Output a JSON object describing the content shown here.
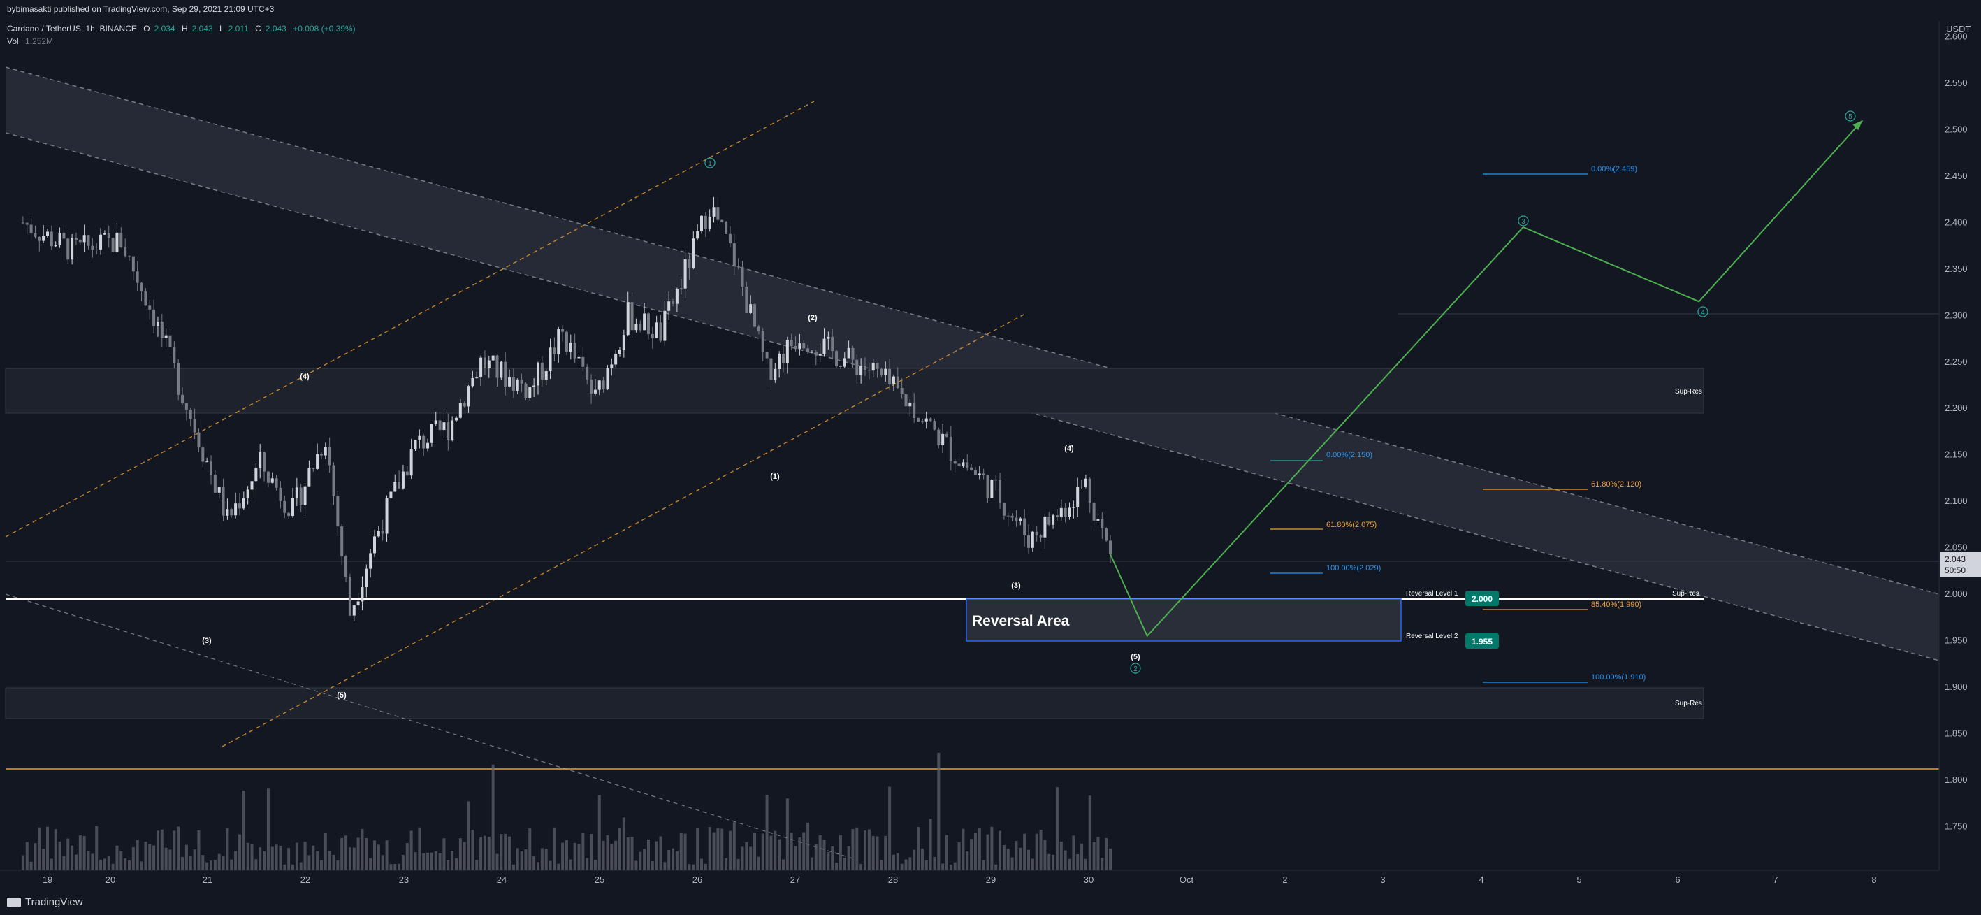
{
  "header": {
    "publisher": "bybimasakti published on TradingView.com, Sep 29, 2021 21:09 UTC+3",
    "symbol": "Cardano / TetherUS, 1h, BINANCE",
    "o_label": "O",
    "o_value": "2.034",
    "h_label": "H",
    "h_value": "2.043",
    "l_label": "L",
    "l_value": "2.011",
    "c_label": "C",
    "c_value": "2.043",
    "change": "+0.008 (+0.39%)",
    "vol_label": "Vol",
    "vol_value": "1.252M"
  },
  "price_axis": {
    "currency": "USDT",
    "ticks": [
      "2.600",
      "2.550",
      "2.500",
      "2.450",
      "2.400",
      "2.350",
      "2.300",
      "2.250",
      "2.200",
      "2.150",
      "2.100",
      "2.050",
      "2.000",
      "1.950",
      "1.900",
      "1.850",
      "1.800",
      "1.750"
    ],
    "current_price": "2.043",
    "countdown": "50:50"
  },
  "time_axis": {
    "ticks": [
      "19",
      "20",
      "21",
      "22",
      "23",
      "24",
      "25",
      "26",
      "27",
      "28",
      "29",
      "30",
      "Oct",
      "2",
      "3",
      "4",
      "5",
      "6",
      "7",
      "8"
    ]
  },
  "footer": {
    "brand": "TradingView"
  },
  "annotations": {
    "wave_labels": [
      {
        "text": "(4)"
      },
      {
        "text": "(3)"
      },
      {
        "text": "(5)"
      },
      {
        "text": "(2)"
      },
      {
        "text": "(1)"
      },
      {
        "text": "(3)"
      },
      {
        "text": "(4)"
      },
      {
        "text": "(5)"
      }
    ],
    "circled_labels": [
      {
        "text": "1"
      },
      {
        "text": "2"
      },
      {
        "text": "3"
      },
      {
        "text": "4"
      },
      {
        "text": "5"
      }
    ],
    "sup_res": [
      "Sup-Res",
      "Sup-Res",
      "Sup-Res"
    ],
    "reversal_area": "Reversal Area",
    "reversal_level_1": "Reversal Level 1",
    "reversal_level_1_value": "2.000",
    "reversal_level_2": "Reversal Level 2",
    "reversal_level_2_value": "1.955",
    "fib_left": [
      "0.00%(2.150)",
      "61.80%(2.075)",
      "100.00%(2.029)"
    ],
    "fib_right": [
      "0.00%(2.459)",
      "61.80%(2.120)",
      "85.40%(1.990)",
      "100.00%(1.910)"
    ]
  },
  "chart_data": {
    "type": "candlestick",
    "title": "Cardano / TetherUS, 1h, BINANCE",
    "xlabel": "",
    "ylabel": "USDT",
    "ylim": [
      1.72,
      2.62
    ],
    "grid": false,
    "colors": {
      "background": "#131722",
      "candle": "#b2b5be",
      "volume": "#5d606b",
      "projection": "#4caf50",
      "channel_fill": "#2a2e39",
      "sup_res_fill": "#1e222d",
      "orange_line": "#f0a12a",
      "fib_blue": "#2196f3",
      "reversal_box": "#2962ff",
      "teal": "#26a69a",
      "label_bg": "#00796b"
    },
    "close_path": [
      {
        "x": "Sep 18 18:00",
        "y": 2.4
      },
      {
        "x": "Sep 19 06:00",
        "y": 2.37
      },
      {
        "x": "Sep 19 18:00",
        "y": 2.38
      },
      {
        "x": "Sep 20 02:00",
        "y": 2.3
      },
      {
        "x": "Sep 20 12:00",
        "y": 2.18
      },
      {
        "x": "Sep 20 20:00",
        "y": 2.08
      },
      {
        "x": "Sep 21 04:00",
        "y": 2.14
      },
      {
        "x": "Sep 21 12:00",
        "y": 2.09
      },
      {
        "x": "Sep 21 20:00",
        "y": 2.17
      },
      {
        "x": "Sep 22 02:00",
        "y": 1.98
      },
      {
        "x": "Sep 22 08:00",
        "y": 2.06
      },
      {
        "x": "Sep 22 18:00",
        "y": 2.16
      },
      {
        "x": "Sep 23 02:00",
        "y": 2.18
      },
      {
        "x": "Sep 23 10:00",
        "y": 2.25
      },
      {
        "x": "Sep 23 22:00",
        "y": 2.22
      },
      {
        "x": "Sep 24 06:00",
        "y": 2.28
      },
      {
        "x": "Sep 24 14:00",
        "y": 2.21
      },
      {
        "x": "Sep 24 22:00",
        "y": 2.3
      },
      {
        "x": "Sep 25 06:00",
        "y": 2.28
      },
      {
        "x": "Sep 25 14:00",
        "y": 2.37
      },
      {
        "x": "Sep 25 18:00",
        "y": 2.42
      },
      {
        "x": "Sep 26 00:00",
        "y": 2.36
      },
      {
        "x": "Sep 26 08:00",
        "y": 2.24
      },
      {
        "x": "Sep 26 16:00",
        "y": 2.28
      },
      {
        "x": "Sep 27 00:00",
        "y": 2.26
      },
      {
        "x": "Sep 27 10:00",
        "y": 2.24
      },
      {
        "x": "Sep 27 20:00",
        "y": 2.2
      },
      {
        "x": "Sep 28 06:00",
        "y": 2.15
      },
      {
        "x": "Sep 28 16:00",
        "y": 2.11
      },
      {
        "x": "Sep 29 00:00",
        "y": 2.06
      },
      {
        "x": "Sep 29 08:00",
        "y": 2.09
      },
      {
        "x": "Sep 29 14:00",
        "y": 2.12
      },
      {
        "x": "Sep 29 20:00",
        "y": 2.04
      }
    ],
    "projection": [
      {
        "x": "Sep 29 20:00",
        "y": 2.043
      },
      {
        "x": "Sep 30 05:00",
        "y": 1.955
      },
      {
        "x": "Oct 4 01:00",
        "y": 2.395
      },
      {
        "x": "Oct 5 20:00",
        "y": 2.315
      },
      {
        "x": "Oct 7 12:00",
        "y": 2.51
      }
    ],
    "levels": {
      "sup_res_upper": [
        2.206,
        2.255
      ],
      "sup_res_lower": [
        1.87,
        1.905
      ],
      "reversal_level_1": 2.0,
      "reversal_level_2": 1.955,
      "orange_support": 1.818
    },
    "volume_axis": {
      "max_spike_day": "Sep 24"
    }
  }
}
